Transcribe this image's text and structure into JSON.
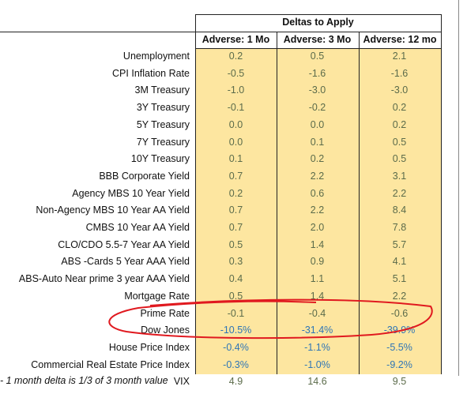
{
  "header": {
    "title": "Deltas to Apply"
  },
  "table": {
    "columns": [
      "Adverse: 1 Mo",
      "Adverse: 3 Mo",
      "Adverse: 12 mo"
    ],
    "rows": [
      [
        "Unemployment",
        "0.2",
        "0.5",
        "2.1"
      ],
      [
        "CPI Inflation Rate",
        "-0.5",
        "-1.6",
        "-1.6"
      ],
      [
        "3M Treasury",
        "-1.0",
        "-3.0",
        "-3.0"
      ],
      [
        "3Y Treasury",
        "-0.1",
        "-0.2",
        "0.2"
      ],
      [
        "5Y Treasury",
        "0.0",
        "0.0",
        "0.2"
      ],
      [
        "7Y Treasury",
        "0.0",
        "0.1",
        "0.5"
      ],
      [
        "10Y Treasury",
        "0.1",
        "0.2",
        "0.5"
      ],
      [
        "BBB Corporate Yield",
        "0.7",
        "2.2",
        "3.1"
      ],
      [
        "Agency MBS 10 Year Yield",
        "0.2",
        "0.6",
        "2.2"
      ],
      [
        "Non-Agency MBS 10 Year AA Yield",
        "0.7",
        "2.2",
        "8.4"
      ],
      [
        "CMBS 10 Year AA Yield",
        "0.7",
        "2.0",
        "7.8"
      ],
      [
        "CLO/CDO 5.5-7 Year AA Yield",
        "0.5",
        "1.4",
        "5.7"
      ],
      [
        "ABS -Cards 5 Year AAA Yield",
        "0.3",
        "0.9",
        "4.1"
      ],
      [
        "ABS-Auto Near prime 3 year AAA Yield",
        "0.4",
        "1.1",
        "5.1"
      ],
      [
        "Mortgage Rate",
        "0.5",
        "1.4",
        "2.2"
      ],
      [
        "Prime Rate",
        "-0.1",
        "-0.4",
        "-0.6"
      ],
      [
        "Dow Jones",
        "-10.5%",
        "-31.4%",
        "-39.9%"
      ],
      [
        "House Price Index",
        "-0.4%",
        "-1.1%",
        "-5.5%"
      ],
      [
        "Commercial Real Estate Price Index",
        "-0.3%",
        "-1.0%",
        "-9.2%"
      ],
      [
        "VIX",
        "4.9",
        "14.6",
        "9.5"
      ]
    ]
  },
  "footnote": "- 1 month delta is 1/3 of 3 month value"
}
